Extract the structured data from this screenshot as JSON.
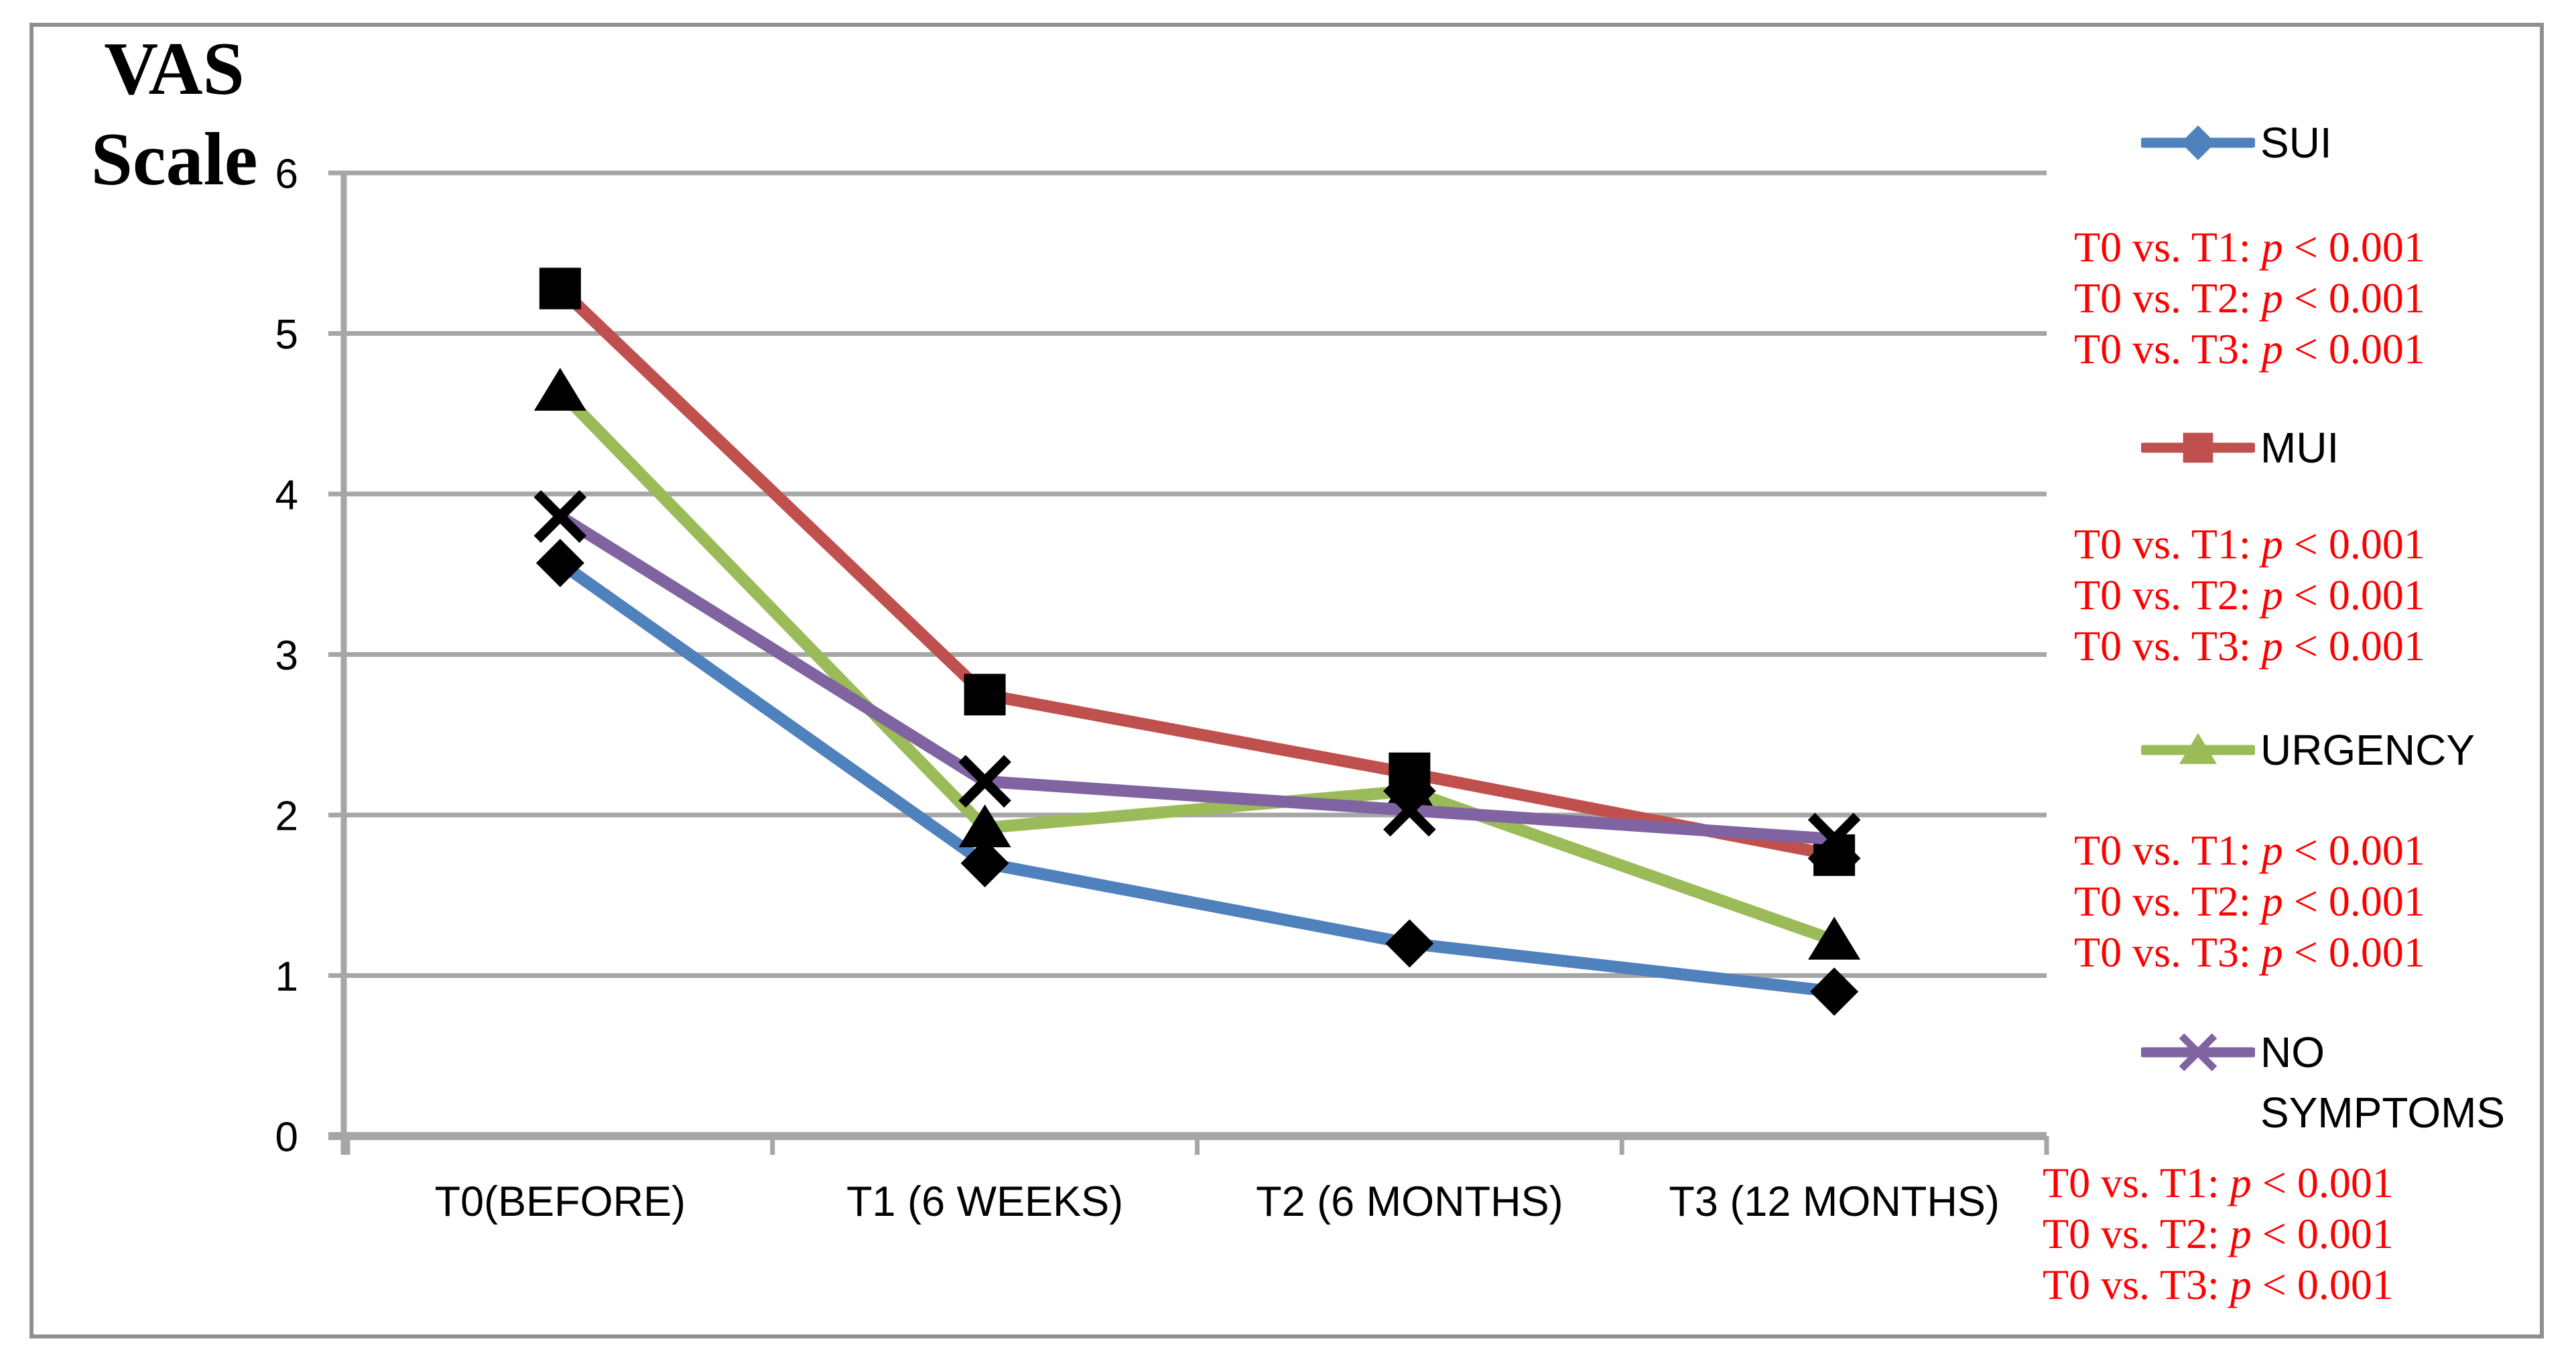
{
  "figure": {
    "title_line1": "VAS",
    "title_line2": "Scale"
  },
  "chart_data": {
    "type": "line",
    "title": "VAS Scale",
    "xlabel": "",
    "ylabel": "VAS Scale",
    "ylim": [
      0,
      6
    ],
    "yticks": [
      6,
      5,
      4,
      3,
      2,
      1,
      0
    ],
    "grid": true,
    "legend_position": "right",
    "categories": [
      "T0(BEFORE)",
      "T1 (6 WEEKS)",
      "T2 (6 MONTHS)",
      "T3 (12 MONTHS)"
    ],
    "series": [
      {
        "name": "SUI",
        "color": "#4F81BD",
        "marker": "diamond",
        "values": [
          3.57,
          1.7,
          1.2,
          0.9
        ]
      },
      {
        "name": "MUI",
        "color": "#C0504D",
        "marker": "square",
        "values": [
          5.28,
          2.75,
          2.26,
          1.75
        ]
      },
      {
        "name": "URGENCY",
        "color": "#9BBB59",
        "marker": "triangle",
        "values": [
          4.64,
          1.92,
          2.15,
          1.22
        ]
      },
      {
        "name": "NO SYMPTOMS",
        "color": "#8064A2",
        "marker": "x",
        "values": [
          3.86,
          2.21,
          2.03,
          1.85
        ]
      }
    ],
    "marker_color": "#000000",
    "grid_color": "#A6A6A6",
    "border_color": "#8F8F8F",
    "annotation_color": "#FF0000"
  },
  "legend": {
    "items": [
      {
        "label": "SUI",
        "comparisons": [
          {
            "prefix": "T0 vs. T1: ",
            "p": "p",
            "rest": " < 0.001"
          },
          {
            "prefix": "T0 vs. T2: ",
            "p": "p",
            "rest": " < 0.001"
          },
          {
            "prefix": "T0 vs. T3: ",
            "p": "p",
            "rest": " < 0.001"
          }
        ]
      },
      {
        "label": "MUI",
        "comparisons": [
          {
            "prefix": "T0 vs. T1: ",
            "p": "p",
            "rest": " < 0.001"
          },
          {
            "prefix": "T0 vs. T2: ",
            "p": "p",
            "rest": " < 0.001"
          },
          {
            "prefix": "T0 vs. T3: ",
            "p": "p",
            "rest": " < 0.001"
          }
        ]
      },
      {
        "label": "URGENCY",
        "comparisons": [
          {
            "prefix": "T0 vs. T1: ",
            "p": "p",
            "rest": " < 0.001"
          },
          {
            "prefix": "T0 vs. T2: ",
            "p": "p",
            "rest": " < 0.001"
          },
          {
            "prefix": "T0 vs. T3: ",
            "p": "p",
            "rest": " < 0.001"
          }
        ]
      },
      {
        "label": "NO SYMPTOMS",
        "comparisons": [
          {
            "prefix": "T0 vs. T1: ",
            "p": "p",
            "rest": " < 0.001"
          },
          {
            "prefix": "T0 vs. T2: ",
            "p": "p",
            "rest": " < 0.001"
          },
          {
            "prefix": "T0 vs. T3: ",
            "p": "p",
            "rest": " < 0.001"
          }
        ]
      }
    ]
  }
}
